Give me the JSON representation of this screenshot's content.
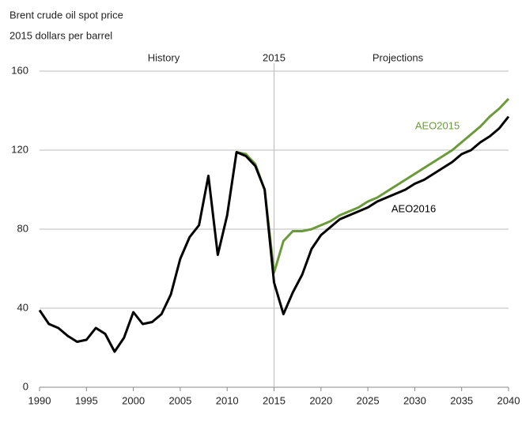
{
  "chart_data": {
    "type": "line",
    "title": "Brent crude oil spot price",
    "subtitle": "2015 dollars per barrel",
    "annotations": {
      "history": "History",
      "projections": "Projections"
    },
    "divider": 2015,
    "x": [
      1990,
      1991,
      1992,
      1993,
      1994,
      1995,
      1996,
      1997,
      1998,
      1999,
      2000,
      2001,
      2002,
      2003,
      2004,
      2005,
      2006,
      2007,
      2008,
      2009,
      2010,
      2011,
      2012,
      2013,
      2014,
      2015,
      2016,
      2017,
      2018,
      2019,
      2020,
      2021,
      2022,
      2023,
      2024,
      2025,
      2026,
      2027,
      2028,
      2029,
      2030,
      2031,
      2032,
      2033,
      2034,
      2035,
      2036,
      2037,
      2038,
      2039,
      2040
    ],
    "series": [
      {
        "name": "AEO2015",
        "color": "#6a9a3a",
        "values": [
          null,
          null,
          null,
          null,
          null,
          null,
          null,
          null,
          null,
          null,
          null,
          null,
          null,
          null,
          null,
          null,
          null,
          null,
          null,
          null,
          null,
          119,
          118,
          113,
          100,
          58,
          74,
          79,
          79,
          80,
          82,
          84,
          87,
          89,
          91,
          94,
          96,
          99,
          102,
          105,
          108,
          111,
          114,
          117,
          120,
          124,
          128,
          132,
          137,
          141,
          146
        ]
      },
      {
        "name": "AEO2016",
        "color": "#000000",
        "values": [
          39,
          32,
          30,
          26,
          23,
          24,
          30,
          27,
          18,
          25,
          38,
          32,
          33,
          37,
          47,
          65,
          76,
          82,
          107,
          67,
          87,
          119,
          117,
          112,
          100,
          53,
          37,
          48,
          57,
          70,
          77,
          81,
          85,
          87,
          89,
          91,
          94,
          96,
          98,
          100,
          103,
          105,
          108,
          111,
          114,
          118,
          120,
          124,
          127,
          131,
          137
        ]
      }
    ],
    "xlim": [
      1990,
      2040
    ],
    "xticks": [
      1990,
      1995,
      2000,
      2005,
      2010,
      2015,
      2020,
      2025,
      2030,
      2035,
      2040
    ],
    "ylim": [
      0,
      160
    ],
    "yticks": [
      0,
      40,
      80,
      120,
      160
    ],
    "grid": true
  }
}
